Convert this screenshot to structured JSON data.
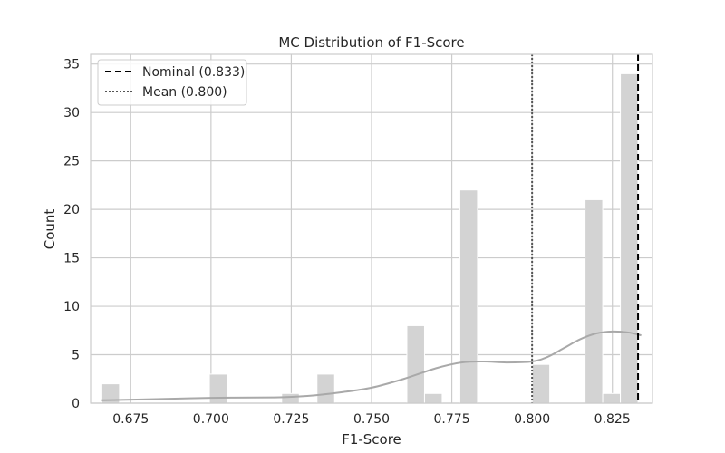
{
  "chart_data": {
    "type": "bar",
    "title": "MC Distribution of F1-Score",
    "xlabel": "F1-Score",
    "ylabel": "Count",
    "xlim": [
      0.6625,
      0.8375
    ],
    "ylim": [
      0,
      36
    ],
    "xticks": [
      0.675,
      0.7,
      0.725,
      0.75,
      0.775,
      0.8,
      0.825
    ],
    "xtick_labels": [
      "0.675",
      "0.700",
      "0.725",
      "0.750",
      "0.775",
      "0.800",
      "0.825"
    ],
    "yticks": [
      0,
      5,
      10,
      15,
      20,
      25,
      30,
      35
    ],
    "ytick_labels": [
      "0",
      "5",
      "10",
      "15",
      "20",
      "25",
      "30",
      "35"
    ],
    "grid": true,
    "bar_color": "#d3d3d3",
    "bins": [
      {
        "x0": 0.666,
        "x1": 0.6715,
        "count": 2
      },
      {
        "x0": 0.6995,
        "x1": 0.705,
        "count": 3
      },
      {
        "x0": 0.722,
        "x1": 0.7275,
        "count": 1
      },
      {
        "x0": 0.733,
        "x1": 0.7385,
        "count": 3
      },
      {
        "x0": 0.761,
        "x1": 0.7665,
        "count": 8
      },
      {
        "x0": 0.7665,
        "x1": 0.772,
        "count": 1
      },
      {
        "x0": 0.7775,
        "x1": 0.783,
        "count": 22
      },
      {
        "x0": 0.8,
        "x1": 0.8055,
        "count": 4
      },
      {
        "x0": 0.8165,
        "x1": 0.822,
        "count": 21
      },
      {
        "x0": 0.822,
        "x1": 0.8275,
        "count": 1
      },
      {
        "x0": 0.8275,
        "x1": 0.833,
        "count": 34
      }
    ],
    "kde": {
      "color": "#a9a9a9",
      "x": [
        0.666,
        0.68,
        0.7,
        0.72,
        0.73,
        0.74,
        0.75,
        0.76,
        0.77,
        0.778,
        0.785,
        0.792,
        0.8,
        0.805,
        0.81,
        0.815,
        0.82,
        0.825,
        0.83,
        0.834
      ],
      "y": [
        0.3,
        0.4,
        0.55,
        0.6,
        0.75,
        1.1,
        1.6,
        2.5,
        3.6,
        4.2,
        4.3,
        4.2,
        4.3,
        4.8,
        5.7,
        6.6,
        7.2,
        7.4,
        7.3,
        7.0
      ]
    },
    "reference_lines": [
      {
        "label": "Nominal (0.833)",
        "x": 0.833,
        "style": "dashed",
        "color": "#000000"
      },
      {
        "label": "Mean (0.800)",
        "x": 0.8,
        "style": "dotted",
        "color": "#555555"
      }
    ],
    "legend_position": "top-left"
  }
}
